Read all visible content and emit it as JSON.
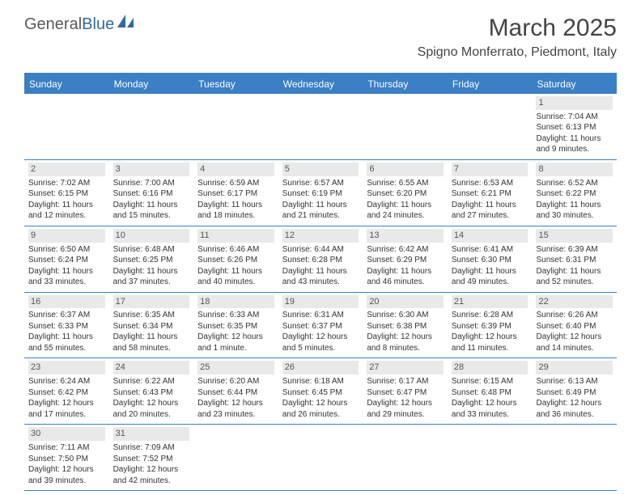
{
  "logo": {
    "part1": "General",
    "part2": "Blue"
  },
  "title": "March 2025",
  "location": "Spigno Monferrato, Piedmont, Italy",
  "colors": {
    "header_bg": "#3b7fc4",
    "header_text": "#ffffff",
    "border": "#3b7fc4",
    "daynum_bg": "#e9e9e9",
    "text": "#333333",
    "logo_gray": "#5a5a5a",
    "logo_blue": "#2f6aa0"
  },
  "day_headers": [
    "Sunday",
    "Monday",
    "Tuesday",
    "Wednesday",
    "Thursday",
    "Friday",
    "Saturday"
  ],
  "weeks": [
    [
      {
        "day": "",
        "sunrise": "",
        "sunset": "",
        "daylight": ""
      },
      {
        "day": "",
        "sunrise": "",
        "sunset": "",
        "daylight": ""
      },
      {
        "day": "",
        "sunrise": "",
        "sunset": "",
        "daylight": ""
      },
      {
        "day": "",
        "sunrise": "",
        "sunset": "",
        "daylight": ""
      },
      {
        "day": "",
        "sunrise": "",
        "sunset": "",
        "daylight": ""
      },
      {
        "day": "",
        "sunrise": "",
        "sunset": "",
        "daylight": ""
      },
      {
        "day": "1",
        "sunrise": "Sunrise: 7:04 AM",
        "sunset": "Sunset: 6:13 PM",
        "daylight": "Daylight: 11 hours and 9 minutes."
      }
    ],
    [
      {
        "day": "2",
        "sunrise": "Sunrise: 7:02 AM",
        "sunset": "Sunset: 6:15 PM",
        "daylight": "Daylight: 11 hours and 12 minutes."
      },
      {
        "day": "3",
        "sunrise": "Sunrise: 7:00 AM",
        "sunset": "Sunset: 6:16 PM",
        "daylight": "Daylight: 11 hours and 15 minutes."
      },
      {
        "day": "4",
        "sunrise": "Sunrise: 6:59 AM",
        "sunset": "Sunset: 6:17 PM",
        "daylight": "Daylight: 11 hours and 18 minutes."
      },
      {
        "day": "5",
        "sunrise": "Sunrise: 6:57 AM",
        "sunset": "Sunset: 6:19 PM",
        "daylight": "Daylight: 11 hours and 21 minutes."
      },
      {
        "day": "6",
        "sunrise": "Sunrise: 6:55 AM",
        "sunset": "Sunset: 6:20 PM",
        "daylight": "Daylight: 11 hours and 24 minutes."
      },
      {
        "day": "7",
        "sunrise": "Sunrise: 6:53 AM",
        "sunset": "Sunset: 6:21 PM",
        "daylight": "Daylight: 11 hours and 27 minutes."
      },
      {
        "day": "8",
        "sunrise": "Sunrise: 6:52 AM",
        "sunset": "Sunset: 6:22 PM",
        "daylight": "Daylight: 11 hours and 30 minutes."
      }
    ],
    [
      {
        "day": "9",
        "sunrise": "Sunrise: 6:50 AM",
        "sunset": "Sunset: 6:24 PM",
        "daylight": "Daylight: 11 hours and 33 minutes."
      },
      {
        "day": "10",
        "sunrise": "Sunrise: 6:48 AM",
        "sunset": "Sunset: 6:25 PM",
        "daylight": "Daylight: 11 hours and 37 minutes."
      },
      {
        "day": "11",
        "sunrise": "Sunrise: 6:46 AM",
        "sunset": "Sunset: 6:26 PM",
        "daylight": "Daylight: 11 hours and 40 minutes."
      },
      {
        "day": "12",
        "sunrise": "Sunrise: 6:44 AM",
        "sunset": "Sunset: 6:28 PM",
        "daylight": "Daylight: 11 hours and 43 minutes."
      },
      {
        "day": "13",
        "sunrise": "Sunrise: 6:42 AM",
        "sunset": "Sunset: 6:29 PM",
        "daylight": "Daylight: 11 hours and 46 minutes."
      },
      {
        "day": "14",
        "sunrise": "Sunrise: 6:41 AM",
        "sunset": "Sunset: 6:30 PM",
        "daylight": "Daylight: 11 hours and 49 minutes."
      },
      {
        "day": "15",
        "sunrise": "Sunrise: 6:39 AM",
        "sunset": "Sunset: 6:31 PM",
        "daylight": "Daylight: 11 hours and 52 minutes."
      }
    ],
    [
      {
        "day": "16",
        "sunrise": "Sunrise: 6:37 AM",
        "sunset": "Sunset: 6:33 PM",
        "daylight": "Daylight: 11 hours and 55 minutes."
      },
      {
        "day": "17",
        "sunrise": "Sunrise: 6:35 AM",
        "sunset": "Sunset: 6:34 PM",
        "daylight": "Daylight: 11 hours and 58 minutes."
      },
      {
        "day": "18",
        "sunrise": "Sunrise: 6:33 AM",
        "sunset": "Sunset: 6:35 PM",
        "daylight": "Daylight: 12 hours and 1 minute."
      },
      {
        "day": "19",
        "sunrise": "Sunrise: 6:31 AM",
        "sunset": "Sunset: 6:37 PM",
        "daylight": "Daylight: 12 hours and 5 minutes."
      },
      {
        "day": "20",
        "sunrise": "Sunrise: 6:30 AM",
        "sunset": "Sunset: 6:38 PM",
        "daylight": "Daylight: 12 hours and 8 minutes."
      },
      {
        "day": "21",
        "sunrise": "Sunrise: 6:28 AM",
        "sunset": "Sunset: 6:39 PM",
        "daylight": "Daylight: 12 hours and 11 minutes."
      },
      {
        "day": "22",
        "sunrise": "Sunrise: 6:26 AM",
        "sunset": "Sunset: 6:40 PM",
        "daylight": "Daylight: 12 hours and 14 minutes."
      }
    ],
    [
      {
        "day": "23",
        "sunrise": "Sunrise: 6:24 AM",
        "sunset": "Sunset: 6:42 PM",
        "daylight": "Daylight: 12 hours and 17 minutes."
      },
      {
        "day": "24",
        "sunrise": "Sunrise: 6:22 AM",
        "sunset": "Sunset: 6:43 PM",
        "daylight": "Daylight: 12 hours and 20 minutes."
      },
      {
        "day": "25",
        "sunrise": "Sunrise: 6:20 AM",
        "sunset": "Sunset: 6:44 PM",
        "daylight": "Daylight: 12 hours and 23 minutes."
      },
      {
        "day": "26",
        "sunrise": "Sunrise: 6:18 AM",
        "sunset": "Sunset: 6:45 PM",
        "daylight": "Daylight: 12 hours and 26 minutes."
      },
      {
        "day": "27",
        "sunrise": "Sunrise: 6:17 AM",
        "sunset": "Sunset: 6:47 PM",
        "daylight": "Daylight: 12 hours and 29 minutes."
      },
      {
        "day": "28",
        "sunrise": "Sunrise: 6:15 AM",
        "sunset": "Sunset: 6:48 PM",
        "daylight": "Daylight: 12 hours and 33 minutes."
      },
      {
        "day": "29",
        "sunrise": "Sunrise: 6:13 AM",
        "sunset": "Sunset: 6:49 PM",
        "daylight": "Daylight: 12 hours and 36 minutes."
      }
    ],
    [
      {
        "day": "30",
        "sunrise": "Sunrise: 7:11 AM",
        "sunset": "Sunset: 7:50 PM",
        "daylight": "Daylight: 12 hours and 39 minutes."
      },
      {
        "day": "31",
        "sunrise": "Sunrise: 7:09 AM",
        "sunset": "Sunset: 7:52 PM",
        "daylight": "Daylight: 12 hours and 42 minutes."
      },
      {
        "day": "",
        "sunrise": "",
        "sunset": "",
        "daylight": ""
      },
      {
        "day": "",
        "sunrise": "",
        "sunset": "",
        "daylight": ""
      },
      {
        "day": "",
        "sunrise": "",
        "sunset": "",
        "daylight": ""
      },
      {
        "day": "",
        "sunrise": "",
        "sunset": "",
        "daylight": ""
      },
      {
        "day": "",
        "sunrise": "",
        "sunset": "",
        "daylight": ""
      }
    ]
  ]
}
